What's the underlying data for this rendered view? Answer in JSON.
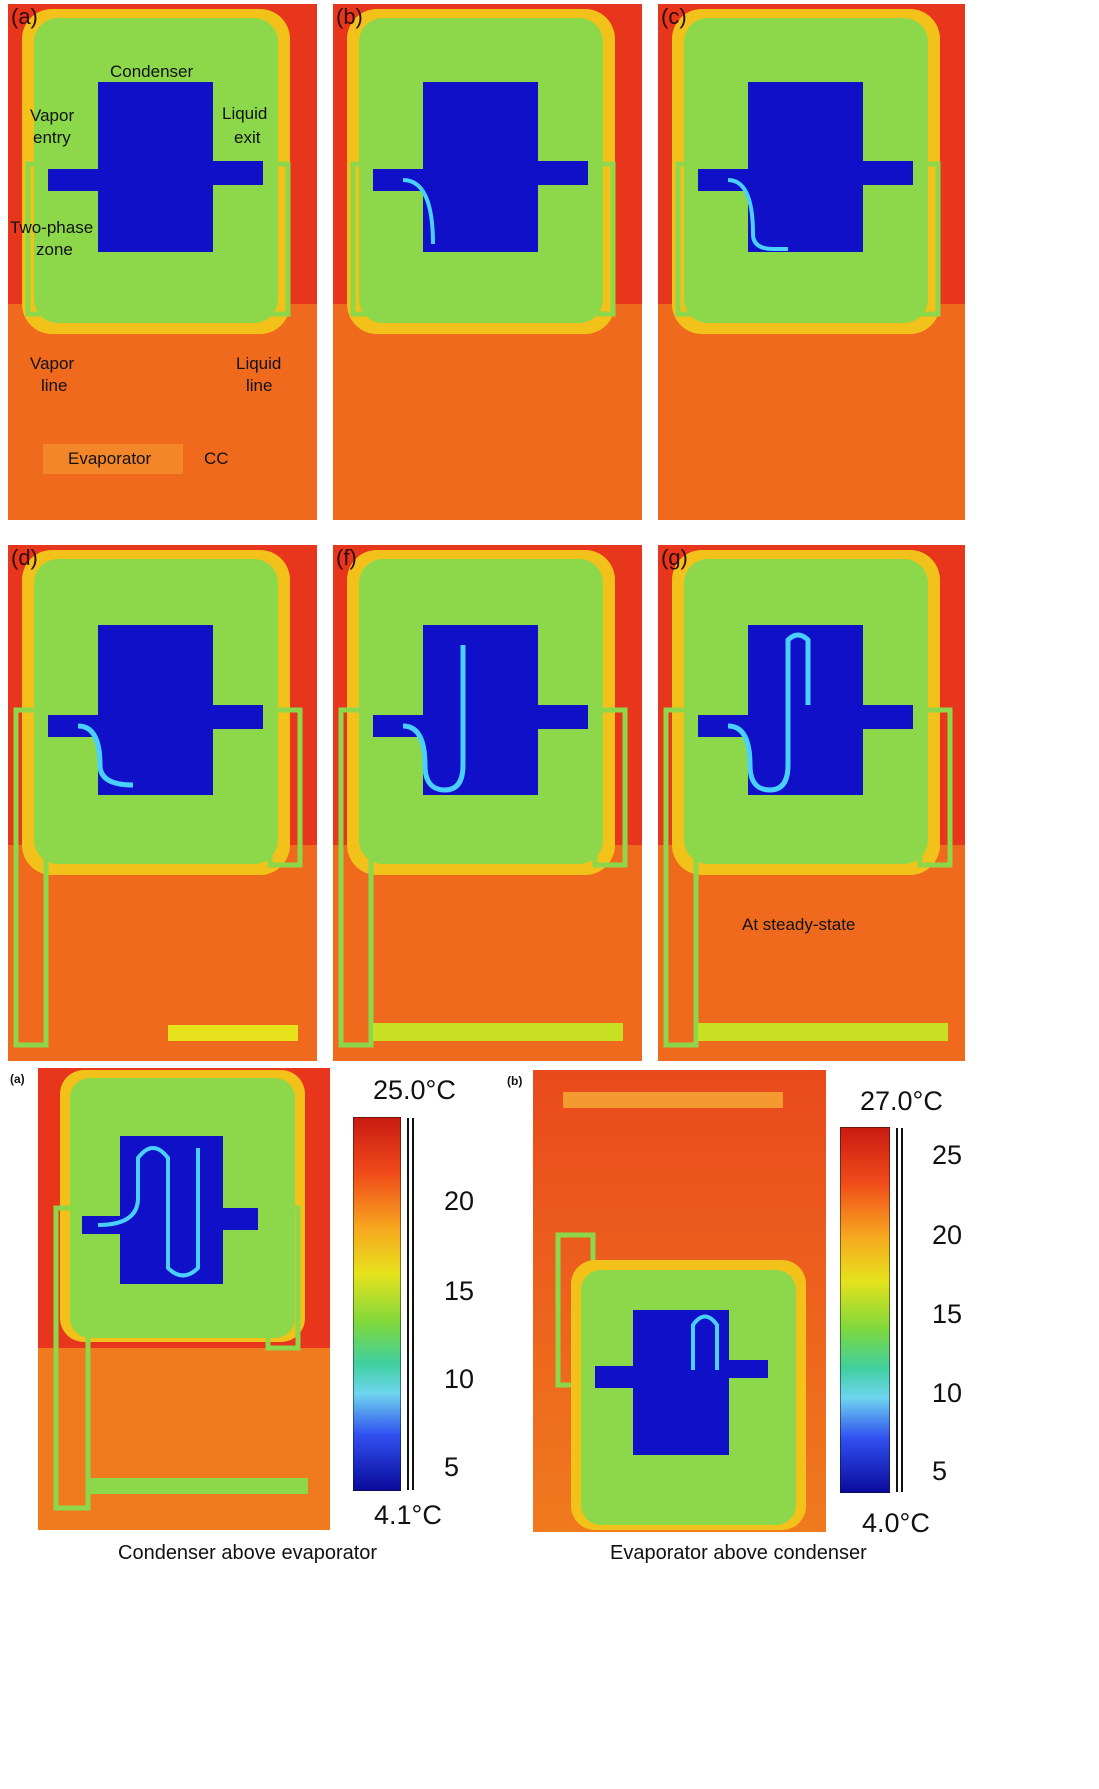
{
  "top_panels": [
    {
      "label": "(a)"
    },
    {
      "label": "(b)"
    },
    {
      "label": "(c)"
    },
    {
      "label": "(d)"
    },
    {
      "label": "(f)"
    },
    {
      "label": "(g)"
    }
  ],
  "annotations": {
    "condenser": "Condenser",
    "vapor_entry_1": "Vapor",
    "vapor_entry_2": "entry",
    "liquid_exit_1": "Liquid",
    "liquid_exit_2": "exit",
    "two_phase_1": "Two-phase",
    "two_phase_2": "zone",
    "vapor_line_1": "Vapor",
    "vapor_line_2": "line",
    "liquid_line_1": "Liquid",
    "liquid_line_2": "line",
    "evaporator": "Evaporator",
    "cc": "CC",
    "steady_state": "At steady-state"
  },
  "bottom_left": {
    "label": "(a)",
    "max_temp": "25.0°C",
    "min_temp": "4.1°C",
    "ticks": [
      "20",
      "15",
      "10",
      "5"
    ],
    "caption": "Condenser above evaporator"
  },
  "bottom_right": {
    "label": "(b)",
    "max_temp": "27.0°C",
    "min_temp": "4.0°C",
    "ticks": [
      "25",
      "20",
      "15",
      "10",
      "5"
    ],
    "caption": "Evaporator above condenser"
  },
  "colors": {
    "hot": "#e8361c",
    "warm": "#f07a1e",
    "mid": "#8cd84a",
    "cold": "#1010c8",
    "edge": "#f2c21a"
  }
}
